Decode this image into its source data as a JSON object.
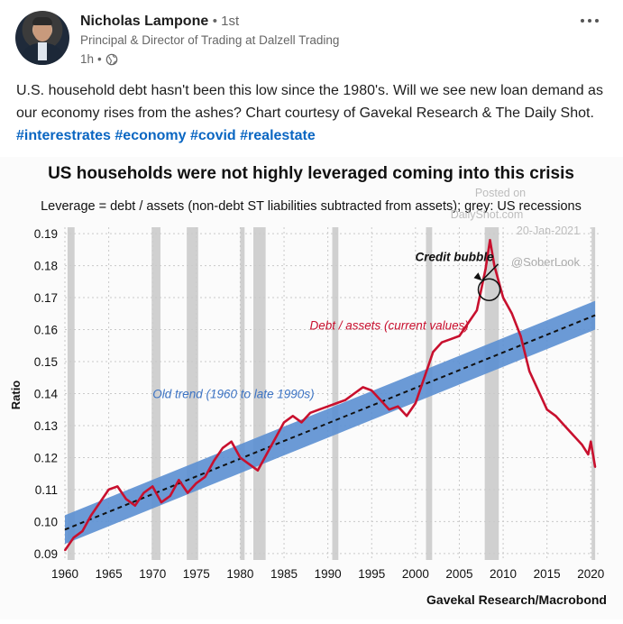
{
  "author": {
    "name": "Nicholas Lampone",
    "connection": "1st",
    "headline": "Principal & Director of Trading at Dalzell Trading",
    "posted_ago": "1h",
    "visibility_icon": "globe-icon"
  },
  "post": {
    "text": "U.S. household debt hasn't been this low since the 1980's. Will we see new loan demand as our economy rises from the ashes? Chart courtesy of Gavekal Research & The Daily Shot.",
    "hashtags": [
      "#interestrates",
      "#economy",
      "#covid",
      "#realestate"
    ],
    "more_menu_icon": "ellipsis-icon"
  },
  "colors": {
    "hashtag": "#0a66c2",
    "debt_line": "#c8102e",
    "trend_band": "#5b8fd1",
    "recession": "#d0d0d0"
  },
  "chart_data": {
    "type": "line",
    "title": "US households were not highly leveraged coming into this crisis",
    "subtitle": "Leverage = debt / assets (non-debt ST liabilities subtracted from assets); grey: US recessions",
    "ylabel": "Ratio",
    "xlabel": "",
    "source": "Gavekal Research/Macrobond",
    "watermark": [
      "Posted on",
      "DailyShot.com",
      "20-Jan-2021",
      "@SoberLook"
    ],
    "xlim": [
      1960,
      2021
    ],
    "ylim": [
      0.088,
      0.192
    ],
    "x_ticks": [
      1960,
      1965,
      1970,
      1975,
      1980,
      1985,
      1990,
      1995,
      2000,
      2005,
      2010,
      2015,
      2020
    ],
    "y_ticks": [
      "0.09",
      "0.10",
      "0.11",
      "0.12",
      "0.13",
      "0.14",
      "0.15",
      "0.16",
      "0.17",
      "0.18",
      "0.19"
    ],
    "y_tick_values": [
      0.09,
      0.1,
      0.11,
      0.12,
      0.13,
      0.14,
      0.15,
      0.16,
      0.17,
      0.18,
      0.19
    ],
    "grid": true,
    "recessions": [
      [
        1960.3,
        1961.1
      ],
      [
        1969.9,
        1970.9
      ],
      [
        1973.9,
        1975.2
      ],
      [
        1980.0,
        1980.5
      ],
      [
        1981.5,
        1982.9
      ],
      [
        1990.5,
        1991.2
      ],
      [
        2001.2,
        2001.9
      ],
      [
        2007.9,
        2009.5
      ],
      [
        2020.1,
        2020.5
      ]
    ],
    "trend": {
      "label": "Old trend (1960 to late 1990s)",
      "start": [
        1960,
        0.0975
      ],
      "end": [
        2020.5,
        0.1645
      ],
      "band_halfwidth": 0.0045
    },
    "series": [
      {
        "name": "Debt / assets (current values)",
        "x": [
          1960,
          1961,
          1962,
          1963,
          1964,
          1965,
          1966,
          1967,
          1968,
          1969,
          1970,
          1971,
          1972,
          1973,
          1974,
          1975,
          1976,
          1977,
          1978,
          1979,
          1980,
          1981,
          1982,
          1983,
          1984,
          1985,
          1986,
          1987,
          1988,
          1989,
          1990,
          1991,
          1992,
          1993,
          1994,
          1995,
          1996,
          1997,
          1998,
          1999,
          2000,
          2001,
          2002,
          2003,
          2004,
          2005,
          2006,
          2007,
          2008,
          2008.5,
          2009,
          2010,
          2011,
          2012,
          2013,
          2014,
          2015,
          2016,
          2017,
          2018,
          2019,
          2019.7,
          2020,
          2020.5
        ],
        "values": [
          0.091,
          0.095,
          0.097,
          0.102,
          0.106,
          0.11,
          0.111,
          0.107,
          0.105,
          0.109,
          0.111,
          0.106,
          0.108,
          0.113,
          0.109,
          0.112,
          0.114,
          0.119,
          0.123,
          0.125,
          0.12,
          0.118,
          0.116,
          0.121,
          0.126,
          0.131,
          0.133,
          0.131,
          0.134,
          0.135,
          0.136,
          0.137,
          0.138,
          0.14,
          0.142,
          0.141,
          0.138,
          0.135,
          0.136,
          0.133,
          0.137,
          0.145,
          0.153,
          0.156,
          0.157,
          0.158,
          0.162,
          0.166,
          0.179,
          0.188,
          0.18,
          0.17,
          0.165,
          0.158,
          0.147,
          0.141,
          0.135,
          0.133,
          0.13,
          0.127,
          0.124,
          0.121,
          0.125,
          0.117
        ]
      }
    ],
    "annotations": [
      {
        "text": "Credit bubble",
        "x": 2008.4,
        "y": 0.1725
      },
      {
        "text": "Debt / assets (current values)",
        "x": 1997,
        "y": 0.16
      },
      {
        "text": "Old trend (1960 to late 1990s)",
        "x": 1970,
        "y": 0.14
      }
    ]
  }
}
